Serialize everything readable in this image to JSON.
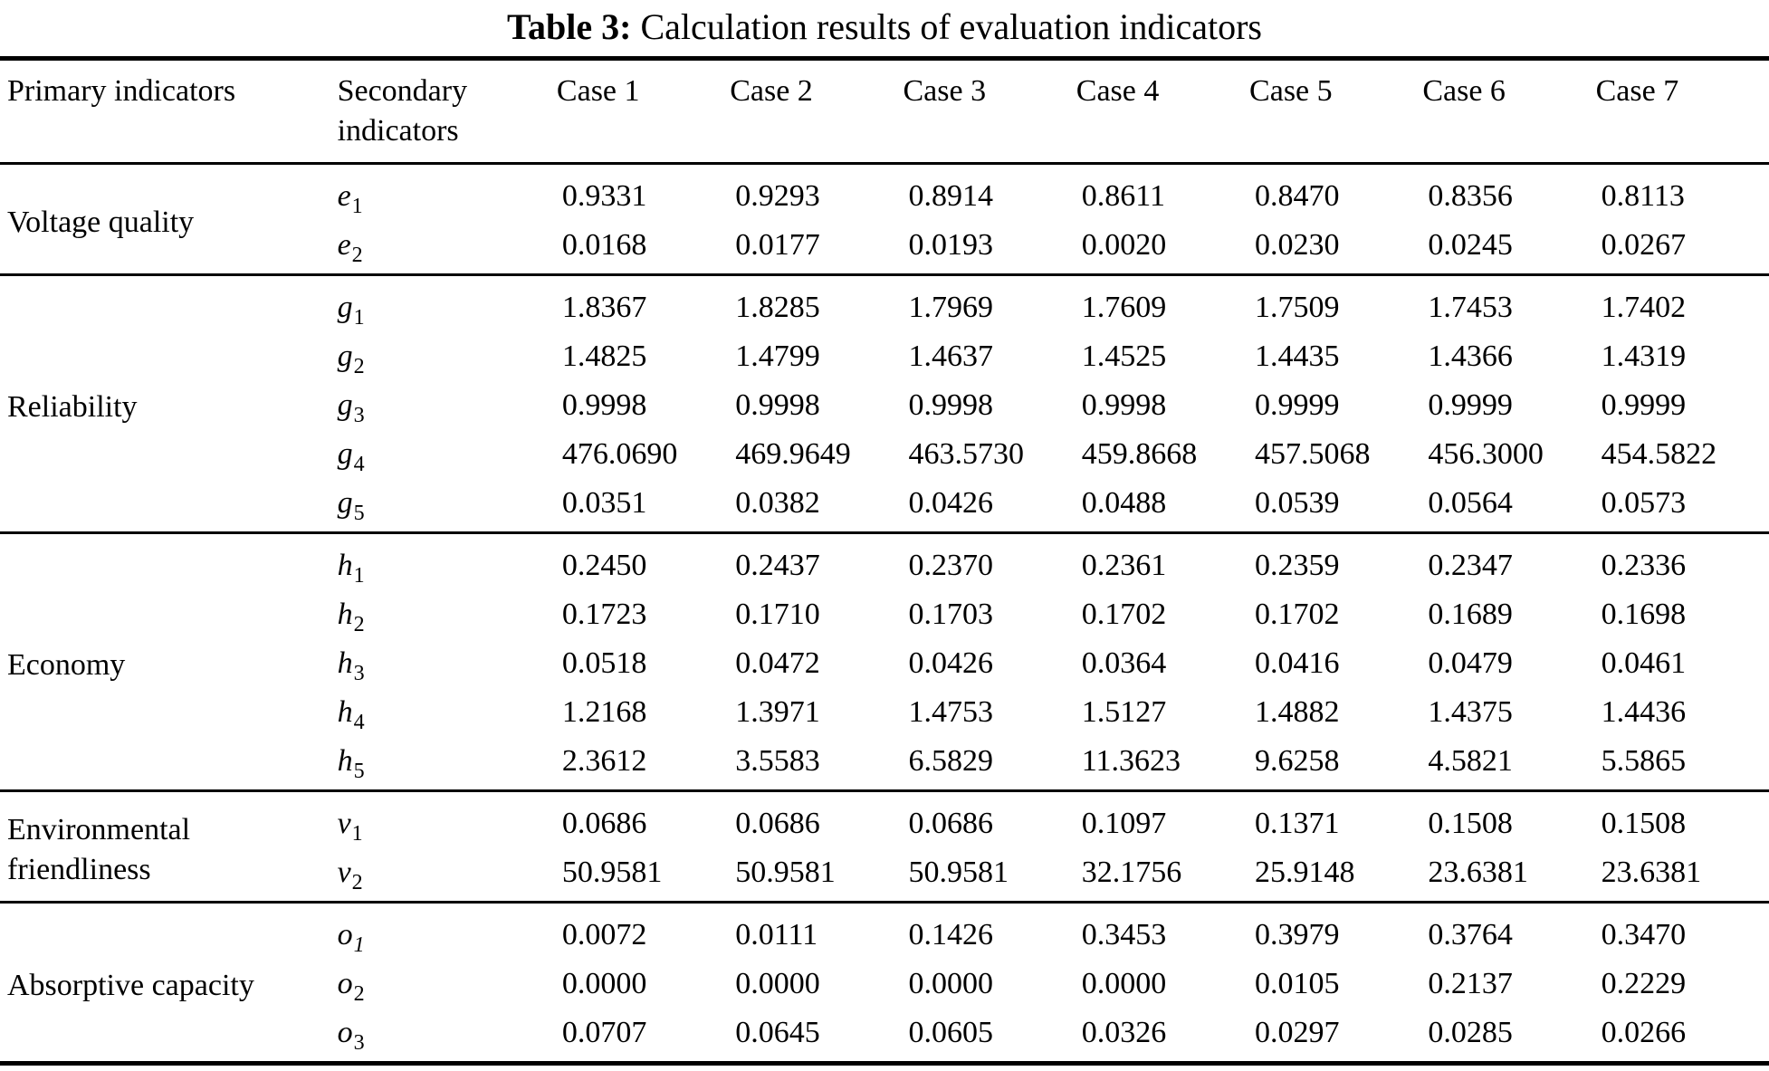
{
  "colors": {
    "background": "#ffffff",
    "text": "#000000",
    "rule": "#000000"
  },
  "caption": {
    "label": "Table 3:",
    "text": "Calculation results of evaluation indicators"
  },
  "table": {
    "headers": {
      "primary": "Primary indicators",
      "secondary": "Secondary indicators",
      "cases": [
        "Case 1",
        "Case 2",
        "Case 3",
        "Case 4",
        "Case 5",
        "Case 6",
        "Case 7"
      ]
    },
    "sections": [
      {
        "label": "Voltage quality",
        "rows": [
          {
            "sym": "e",
            "sub": "1",
            "values": [
              "0.9331",
              "0.9293",
              "0.8914",
              "0.8611",
              "0.8470",
              "0.8356",
              "0.8113"
            ]
          },
          {
            "sym": "e",
            "sub": "2",
            "values": [
              "0.0168",
              "0.0177",
              "0.0193",
              "0.0020",
              "0.0230",
              "0.0245",
              "0.0267"
            ]
          }
        ]
      },
      {
        "label": "Reliability",
        "rows": [
          {
            "sym": "g",
            "sub": "1",
            "values": [
              "1.8367",
              "1.8285",
              "1.7969",
              "1.7609",
              "1.7509",
              "1.7453",
              "1.7402"
            ]
          },
          {
            "sym": "g",
            "sub": "2",
            "values": [
              "1.4825",
              "1.4799",
              "1.4637",
              "1.4525",
              "1.4435",
              "1.4366",
              "1.4319"
            ]
          },
          {
            "sym": "g",
            "sub": "3",
            "values": [
              "0.9998",
              "0.9998",
              "0.9998",
              "0.9998",
              "0.9999",
              "0.9999",
              "0.9999"
            ]
          },
          {
            "sym": "g",
            "sub": "4",
            "values": [
              "476.0690",
              "469.9649",
              "463.5730",
              "459.8668",
              "457.5068",
              "456.3000",
              "454.5822"
            ]
          },
          {
            "sym": "g",
            "sub": "5",
            "values": [
              "0.0351",
              "0.0382",
              "0.0426",
              "0.0488",
              "0.0539",
              "0.0564",
              "0.0573"
            ]
          }
        ]
      },
      {
        "label": "Economy",
        "rows": [
          {
            "sym": "h",
            "sub": "1",
            "values": [
              "0.2450",
              "0.2437",
              "0.2370",
              "0.2361",
              "0.2359",
              "0.2347",
              "0.2336"
            ]
          },
          {
            "sym": "h",
            "sub": "2",
            "values": [
              "0.1723",
              "0.1710",
              "0.1703",
              "0.1702",
              "0.1702",
              "0.1689",
              "0.1698"
            ]
          },
          {
            "sym": "h",
            "sub": "3",
            "values": [
              "0.0518",
              "0.0472",
              "0.0426",
              "0.0364",
              "0.0416",
              "0.0479",
              "0.0461"
            ]
          },
          {
            "sym": "h",
            "sub": "4",
            "values": [
              "1.2168",
              "1.3971",
              "1.4753",
              "1.5127",
              "1.4882",
              "1.4375",
              "1.4436"
            ]
          },
          {
            "sym": "h",
            "sub": "5",
            "values": [
              "2.3612",
              "3.5583",
              "6.5829",
              "11.3623",
              "9.6258",
              "4.5821",
              "5.5865"
            ]
          }
        ]
      },
      {
        "label": "Environmental friendliness",
        "rows": [
          {
            "sym": "v",
            "sub": "1",
            "values": [
              "0.0686",
              "0.0686",
              "0.0686",
              "0.1097",
              "0.1371",
              "0.1508",
              "0.1508"
            ]
          },
          {
            "sym": "v",
            "sub": "2",
            "values": [
              "50.9581",
              "50.9581",
              "50.9581",
              "32.1756",
              "25.9148",
              "23.6381",
              "23.6381"
            ]
          }
        ]
      },
      {
        "label": "Absorptive capacity",
        "rows": [
          {
            "sym": "o",
            "sub": "1",
            "sub_style": "italic",
            "values": [
              "0.0072",
              "0.0111",
              "0.1426",
              "0.3453",
              "0.3979",
              "0.3764",
              "0.3470"
            ]
          },
          {
            "sym": "o",
            "sub": "2",
            "values": [
              "0.0000",
              "0.0000",
              "0.0000",
              "0.0000",
              "0.0105",
              "0.2137",
              "0.2229"
            ]
          },
          {
            "sym": "o",
            "sub": "3",
            "values": [
              "0.0707",
              "0.0645",
              "0.0605",
              "0.0326",
              "0.0297",
              "0.0285",
              "0.0266"
            ]
          }
        ]
      }
    ]
  }
}
